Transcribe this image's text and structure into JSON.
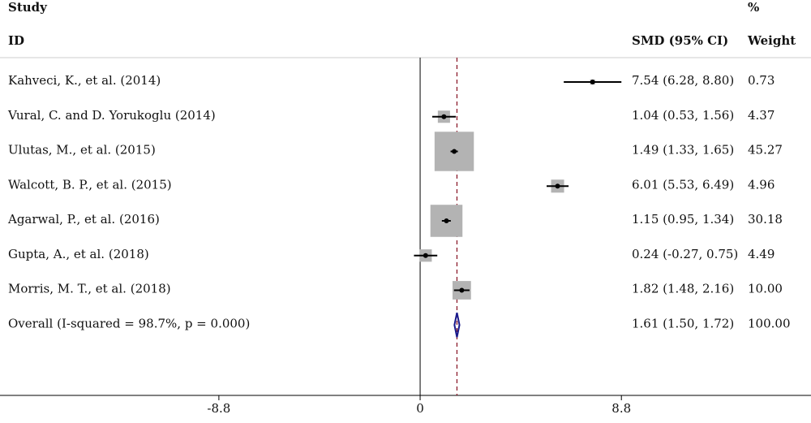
{
  "chart_data": {
    "type": "forest",
    "headers": {
      "study": "Study",
      "pct": "%",
      "id": "ID",
      "effect": "SMD (95% CI)",
      "weight": "Weight"
    },
    "studies": [
      "Kahveci, K., et al. (2014)",
      "Vural, C. and D. Yorukoglu (2014)",
      "Ulutas, M., et al. (2015)",
      "Walcott, B. P., et al. (2015)",
      "Agarwal, P., et al. (2016)",
      "Gupta, A., et al. (2018)",
      "Morris, M. T., et al. (2018)"
    ],
    "smd": [
      7.54,
      1.04,
      1.49,
      6.01,
      1.15,
      0.24,
      1.82
    ],
    "ci_low": [
      6.28,
      0.53,
      1.33,
      5.53,
      0.95,
      -0.27,
      1.48
    ],
    "ci_high": [
      8.8,
      1.56,
      1.65,
      6.49,
      1.34,
      0.75,
      2.16
    ],
    "effect_labels": [
      "7.54 (6.28, 8.80)",
      "1.04 (0.53, 1.56)",
      "1.49 (1.33, 1.65)",
      "6.01 (5.53, 6.49)",
      "1.15 (0.95, 1.34)",
      "0.24 (-0.27, 0.75)",
      "1.82 (1.48, 2.16)"
    ],
    "weights": [
      0.73,
      4.37,
      45.27,
      4.96,
      30.18,
      4.49,
      10.0
    ],
    "weight_labels": [
      "0.73",
      "4.37",
      "45.27",
      "4.96",
      "30.18",
      "4.49",
      "10.00"
    ],
    "overall": {
      "label": "Overall (I-squared = 98.7%, p = 0.000)",
      "smd": 1.61,
      "ci_low": 1.5,
      "ci_high": 1.72,
      "effect_label": "1.61 (1.50, 1.72)",
      "weight": 100,
      "weight_label": "100.00"
    },
    "xlim": [
      -18.37,
      17.09
    ],
    "xticks": [
      -8.8,
      0,
      8.8
    ],
    "box_color": "#b3b3b3",
    "diamond_color": "#1a1a8c",
    "overall_line_color": "#8b1a2b"
  }
}
